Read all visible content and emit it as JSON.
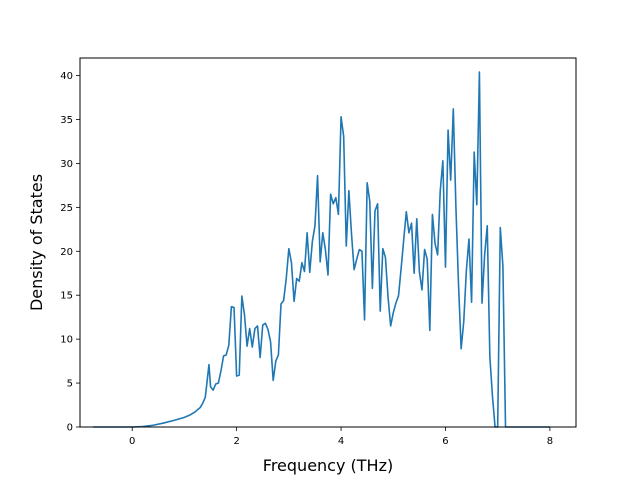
{
  "chart_data": {
    "type": "line",
    "title": "",
    "xlabel": "Frequency (THz)",
    "ylabel": "Density of States",
    "xlim": [
      -1.0,
      8.5
    ],
    "ylim": [
      0,
      42
    ],
    "xticks": [
      0,
      2,
      4,
      6,
      8
    ],
    "yticks": [
      0,
      5,
      10,
      15,
      20,
      25,
      30,
      35,
      40
    ],
    "grid": false,
    "legend": "none",
    "series": [
      {
        "color": "#1f77b4",
        "points": [
          [
            -0.75,
            0
          ],
          [
            0,
            0
          ],
          [
            0.2,
            0.05
          ],
          [
            0.4,
            0.2
          ],
          [
            0.6,
            0.45
          ],
          [
            0.8,
            0.75
          ],
          [
            1.0,
            1.1
          ],
          [
            1.1,
            1.35
          ],
          [
            1.2,
            1.7
          ],
          [
            1.3,
            2.2
          ],
          [
            1.35,
            2.7
          ],
          [
            1.4,
            3.4
          ],
          [
            1.44,
            5.5
          ],
          [
            1.47,
            7.1
          ],
          [
            1.5,
            4.6
          ],
          [
            1.55,
            4.2
          ],
          [
            1.6,
            4.9
          ],
          [
            1.65,
            5.0
          ],
          [
            1.7,
            6.4
          ],
          [
            1.75,
            8.1
          ],
          [
            1.8,
            8.2
          ],
          [
            1.85,
            9.3
          ],
          [
            1.9,
            13.7
          ],
          [
            1.95,
            13.6
          ],
          [
            2.0,
            5.8
          ],
          [
            2.05,
            5.9
          ],
          [
            2.1,
            14.9
          ],
          [
            2.15,
            12.8
          ],
          [
            2.2,
            9.2
          ],
          [
            2.25,
            11.2
          ],
          [
            2.3,
            9.1
          ],
          [
            2.35,
            11.2
          ],
          [
            2.4,
            11.5
          ],
          [
            2.45,
            7.9
          ],
          [
            2.5,
            11.6
          ],
          [
            2.55,
            11.8
          ],
          [
            2.6,
            11.1
          ],
          [
            2.65,
            9.7
          ],
          [
            2.7,
            5.3
          ],
          [
            2.75,
            7.5
          ],
          [
            2.8,
            8.2
          ],
          [
            2.85,
            14.0
          ],
          [
            2.9,
            14.4
          ],
          [
            2.95,
            16.9
          ],
          [
            3.0,
            20.3
          ],
          [
            3.05,
            18.7
          ],
          [
            3.1,
            14.3
          ],
          [
            3.15,
            16.9
          ],
          [
            3.2,
            16.6
          ],
          [
            3.25,
            18.7
          ],
          [
            3.3,
            17.7
          ],
          [
            3.35,
            22.1
          ],
          [
            3.4,
            17.6
          ],
          [
            3.45,
            21.1
          ],
          [
            3.5,
            22.9
          ],
          [
            3.55,
            28.6
          ],
          [
            3.6,
            18.8
          ],
          [
            3.65,
            22.1
          ],
          [
            3.7,
            20.2
          ],
          [
            3.75,
            17.3
          ],
          [
            3.8,
            26.5
          ],
          [
            3.85,
            25.4
          ],
          [
            3.9,
            26.1
          ],
          [
            3.95,
            24.2
          ],
          [
            4.0,
            35.3
          ],
          [
            4.05,
            33.1
          ],
          [
            4.1,
            20.6
          ],
          [
            4.15,
            26.9
          ],
          [
            4.2,
            22.0
          ],
          [
            4.25,
            17.9
          ],
          [
            4.3,
            19.1
          ],
          [
            4.35,
            20.2
          ],
          [
            4.4,
            20.0
          ],
          [
            4.45,
            12.2
          ],
          [
            4.5,
            27.8
          ],
          [
            4.55,
            25.7
          ],
          [
            4.6,
            15.8
          ],
          [
            4.65,
            24.6
          ],
          [
            4.7,
            25.4
          ],
          [
            4.75,
            13.2
          ],
          [
            4.8,
            20.3
          ],
          [
            4.85,
            19.3
          ],
          [
            4.9,
            14.8
          ],
          [
            4.95,
            11.5
          ],
          [
            5.0,
            13.0
          ],
          [
            5.05,
            14.1
          ],
          [
            5.1,
            14.9
          ],
          [
            5.15,
            18.0
          ],
          [
            5.2,
            21.3
          ],
          [
            5.25,
            24.5
          ],
          [
            5.3,
            22.1
          ],
          [
            5.35,
            23.2
          ],
          [
            5.4,
            17.5
          ],
          [
            5.45,
            23.7
          ],
          [
            5.5,
            17.7
          ],
          [
            5.55,
            15.6
          ],
          [
            5.6,
            20.2
          ],
          [
            5.65,
            19.1
          ],
          [
            5.7,
            11.0
          ],
          [
            5.75,
            24.2
          ],
          [
            5.8,
            20.9
          ],
          [
            5.85,
            19.6
          ],
          [
            5.9,
            26.9
          ],
          [
            5.95,
            30.3
          ],
          [
            6.0,
            18.2
          ],
          [
            6.05,
            33.8
          ],
          [
            6.1,
            28.1
          ],
          [
            6.15,
            36.2
          ],
          [
            6.2,
            25.0
          ],
          [
            6.25,
            16.2
          ],
          [
            6.3,
            8.9
          ],
          [
            6.35,
            12.0
          ],
          [
            6.4,
            17.8
          ],
          [
            6.45,
            21.4
          ],
          [
            6.5,
            14.2
          ],
          [
            6.55,
            31.3
          ],
          [
            6.6,
            25.3
          ],
          [
            6.65,
            40.4
          ],
          [
            6.7,
            14.1
          ],
          [
            6.75,
            19.6
          ],
          [
            6.8,
            22.9
          ],
          [
            6.85,
            8.0
          ],
          [
            6.9,
            3.5
          ],
          [
            6.95,
            0
          ],
          [
            7.0,
            0
          ],
          [
            7.05,
            22.7
          ],
          [
            7.1,
            18.3
          ],
          [
            7.15,
            0
          ],
          [
            8.0,
            0
          ]
        ]
      }
    ]
  }
}
